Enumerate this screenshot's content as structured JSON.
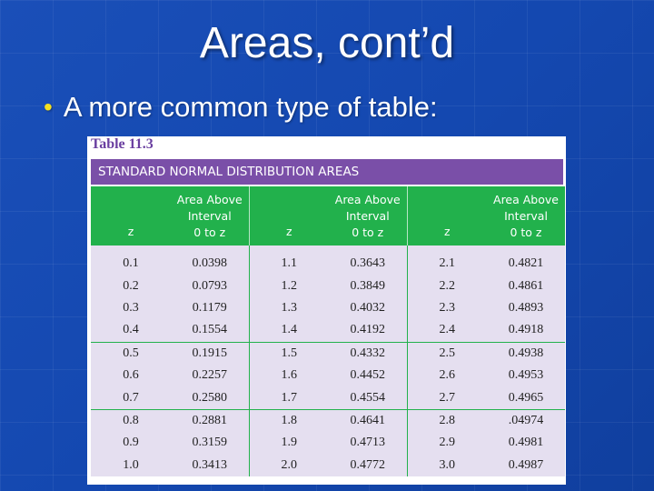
{
  "slide": {
    "title": "Areas, cont’d",
    "bullet": "A more common type of table:"
  },
  "table": {
    "label": "Table 11.3",
    "heading": "STANDARD NORMAL DISTRIBUTION AREAS",
    "col_z": "z",
    "col_area_lines": [
      "Area Above",
      "Interval",
      "0 to z"
    ],
    "rows": [
      [
        "0.1",
        "0.0398",
        "1.1",
        "0.3643",
        "2.1",
        "0.4821"
      ],
      [
        "0.2",
        "0.0793",
        "1.2",
        "0.3849",
        "2.2",
        "0.4861"
      ],
      [
        "0.3",
        "0.1179",
        "1.3",
        "0.4032",
        "2.3",
        "0.4893"
      ],
      [
        "0.4",
        "0.1554",
        "1.4",
        "0.4192",
        "2.4",
        "0.4918"
      ],
      [
        "0.5",
        "0.1915",
        "1.5",
        "0.4332",
        "2.5",
        "0.4938"
      ],
      [
        "0.6",
        "0.2257",
        "1.6",
        "0.4452",
        "2.6",
        "0.4953"
      ],
      [
        "0.7",
        "0.2580",
        "1.7",
        "0.4554",
        "2.7",
        "0.4965"
      ],
      [
        "0.8",
        "0.2881",
        "1.8",
        "0.4641",
        "2.8",
        ".04974"
      ],
      [
        "0.9",
        "0.3159",
        "1.9",
        "0.4713",
        "2.9",
        "0.4981"
      ],
      [
        "1.0",
        "0.3413",
        "2.0",
        "0.4772",
        "3.0",
        "0.4987"
      ]
    ]
  },
  "colors": {
    "background": "#1448b0",
    "bullet": "#f4e020",
    "table_heading_bar": "#7a4fa8",
    "table_header": "#22b14c",
    "table_body": "#e5dff0"
  }
}
